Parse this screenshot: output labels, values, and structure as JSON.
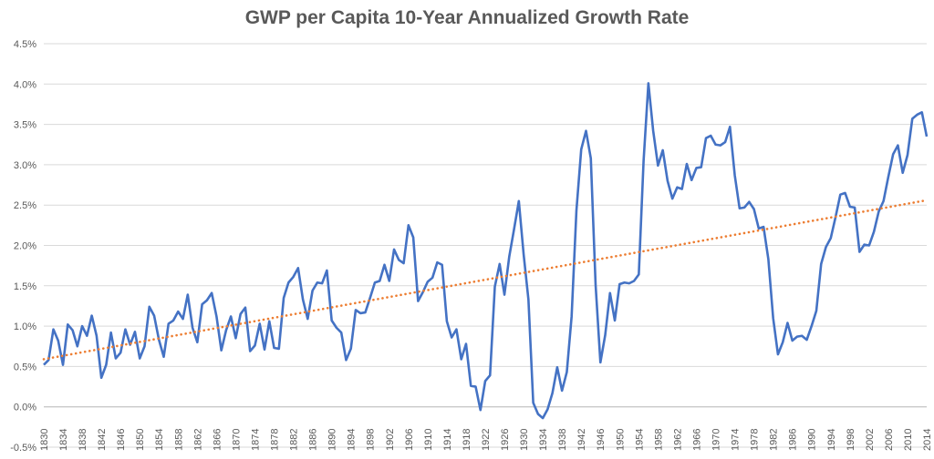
{
  "chart_data": {
    "type": "line",
    "title": "GWP per Capita 10-Year Annualized Growth Rate",
    "xlabel": "",
    "ylabel": "",
    "ylim": [
      -0.5,
      4.5
    ],
    "y_ticks": [
      -0.5,
      0.0,
      0.5,
      1.0,
      1.5,
      2.0,
      2.5,
      3.0,
      3.5,
      4.0,
      4.5
    ],
    "y_tick_labels": [
      "-0.5%",
      "0.0%",
      "0.5%",
      "1.0%",
      "1.5%",
      "2.0%",
      "2.5%",
      "3.0%",
      "3.5%",
      "4.0%",
      "4.5%"
    ],
    "x_range": [
      1830,
      2014
    ],
    "x_ticks": [
      1830,
      1834,
      1838,
      1842,
      1846,
      1850,
      1854,
      1858,
      1862,
      1866,
      1870,
      1874,
      1878,
      1882,
      1886,
      1890,
      1894,
      1898,
      1902,
      1906,
      1910,
      1914,
      1918,
      1922,
      1926,
      1930,
      1934,
      1938,
      1942,
      1946,
      1950,
      1954,
      1958,
      1962,
      1966,
      1970,
      1974,
      1978,
      1982,
      1986,
      1990,
      1994,
      1998,
      2002,
      2006,
      2010,
      2014
    ],
    "grid": true,
    "legend": "none",
    "series": [
      {
        "name": "GWP per Capita 10-Year Annualized Growth Rate",
        "color": "#4472C4",
        "style": "solid",
        "x": [
          1830,
          1831,
          1832,
          1833,
          1834,
          1835,
          1836,
          1837,
          1838,
          1839,
          1840,
          1841,
          1842,
          1843,
          1844,
          1845,
          1846,
          1847,
          1848,
          1849,
          1850,
          1851,
          1852,
          1853,
          1854,
          1855,
          1856,
          1857,
          1858,
          1859,
          1860,
          1861,
          1862,
          1863,
          1864,
          1865,
          1866,
          1867,
          1868,
          1869,
          1870,
          1871,
          1872,
          1873,
          1874,
          1875,
          1876,
          1877,
          1878,
          1879,
          1880,
          1881,
          1882,
          1883,
          1884,
          1885,
          1886,
          1887,
          1888,
          1889,
          1890,
          1891,
          1892,
          1893,
          1894,
          1895,
          1896,
          1897,
          1898,
          1899,
          1900,
          1901,
          1902,
          1903,
          1904,
          1905,
          1906,
          1907,
          1908,
          1909,
          1910,
          1911,
          1912,
          1913,
          1914,
          1915,
          1916,
          1917,
          1918,
          1919,
          1920,
          1921,
          1922,
          1923,
          1924,
          1925,
          1926,
          1927,
          1928,
          1929,
          1930,
          1931,
          1932,
          1933,
          1934,
          1935,
          1936,
          1937,
          1938,
          1939,
          1940,
          1941,
          1942,
          1943,
          1944,
          1945,
          1946,
          1947,
          1948,
          1949,
          1950,
          1951,
          1952,
          1953,
          1954,
          1955,
          1956,
          1957,
          1958,
          1959,
          1960,
          1961,
          1962,
          1963,
          1964,
          1965,
          1966,
          1967,
          1968,
          1969,
          1970,
          1971,
          1972,
          1973,
          1974,
          1975,
          1976,
          1977,
          1978,
          1979,
          1980,
          1981,
          1982,
          1983,
          1984,
          1985,
          1986,
          1987,
          1988,
          1989,
          1990,
          1991,
          1992,
          1993,
          1994,
          1995,
          1996,
          1997,
          1998,
          1999,
          2000,
          2001,
          2002,
          2003,
          2004,
          2005,
          2006,
          2007,
          2008,
          2009,
          2010,
          2011,
          2012,
          2013,
          2014
        ],
        "values": [
          0.52,
          0.58,
          0.96,
          0.82,
          0.52,
          1.02,
          0.95,
          0.75,
          1.0,
          0.88,
          1.13,
          0.88,
          0.36,
          0.52,
          0.92,
          0.6,
          0.67,
          0.96,
          0.77,
          0.93,
          0.6,
          0.75,
          1.24,
          1.13,
          0.83,
          0.62,
          1.03,
          1.07,
          1.18,
          1.09,
          1.39,
          0.98,
          0.8,
          1.27,
          1.32,
          1.41,
          1.12,
          0.7,
          0.95,
          1.12,
          0.85,
          1.15,
          1.23,
          0.69,
          0.76,
          1.03,
          0.71,
          1.06,
          0.73,
          0.72,
          1.35,
          1.54,
          1.61,
          1.72,
          1.33,
          1.09,
          1.44,
          1.54,
          1.53,
          1.69,
          1.07,
          0.98,
          0.92,
          0.58,
          0.72,
          1.2,
          1.16,
          1.17,
          1.35,
          1.54,
          1.56,
          1.76,
          1.56,
          1.95,
          1.82,
          1.78,
          2.25,
          2.1,
          1.31,
          1.42,
          1.55,
          1.6,
          1.79,
          1.76,
          1.06,
          0.86,
          0.96,
          0.59,
          0.78,
          0.26,
          0.25,
          -0.04,
          0.32,
          0.39,
          1.49,
          1.77,
          1.39,
          1.86,
          2.2,
          2.55,
          1.89,
          1.33,
          0.05,
          -0.09,
          -0.14,
          -0.03,
          0.17,
          0.49,
          0.2,
          0.43,
          1.12,
          2.43,
          3.19,
          3.42,
          3.08,
          1.51,
          0.55,
          0.89,
          1.41,
          1.07,
          1.52,
          1.54,
          1.53,
          1.56,
          1.64,
          3.05,
          4.01,
          3.42,
          2.99,
          3.18,
          2.8,
          2.58,
          2.72,
          2.7,
          3.01,
          2.81,
          2.96,
          2.97,
          3.33,
          3.36,
          3.25,
          3.24,
          3.28,
          3.47,
          2.87,
          2.46,
          2.47,
          2.54,
          2.45,
          2.21,
          2.23,
          1.83,
          1.1,
          0.65,
          0.8,
          1.04,
          0.82,
          0.87,
          0.88,
          0.83,
          1.0,
          1.19,
          1.77,
          1.98,
          2.09,
          2.35,
          2.63,
          2.65,
          2.48,
          2.47,
          1.92,
          2.01,
          2.0,
          2.17,
          2.42,
          2.55,
          2.85,
          3.13,
          3.24,
          2.9,
          3.12,
          3.57,
          3.62,
          3.65,
          3.35
        ]
      },
      {
        "name": "Linear trend",
        "color": "#ED7D31",
        "style": "dotted",
        "x": [
          1830,
          2014
        ],
        "values": [
          0.59,
          2.56
        ]
      }
    ]
  }
}
